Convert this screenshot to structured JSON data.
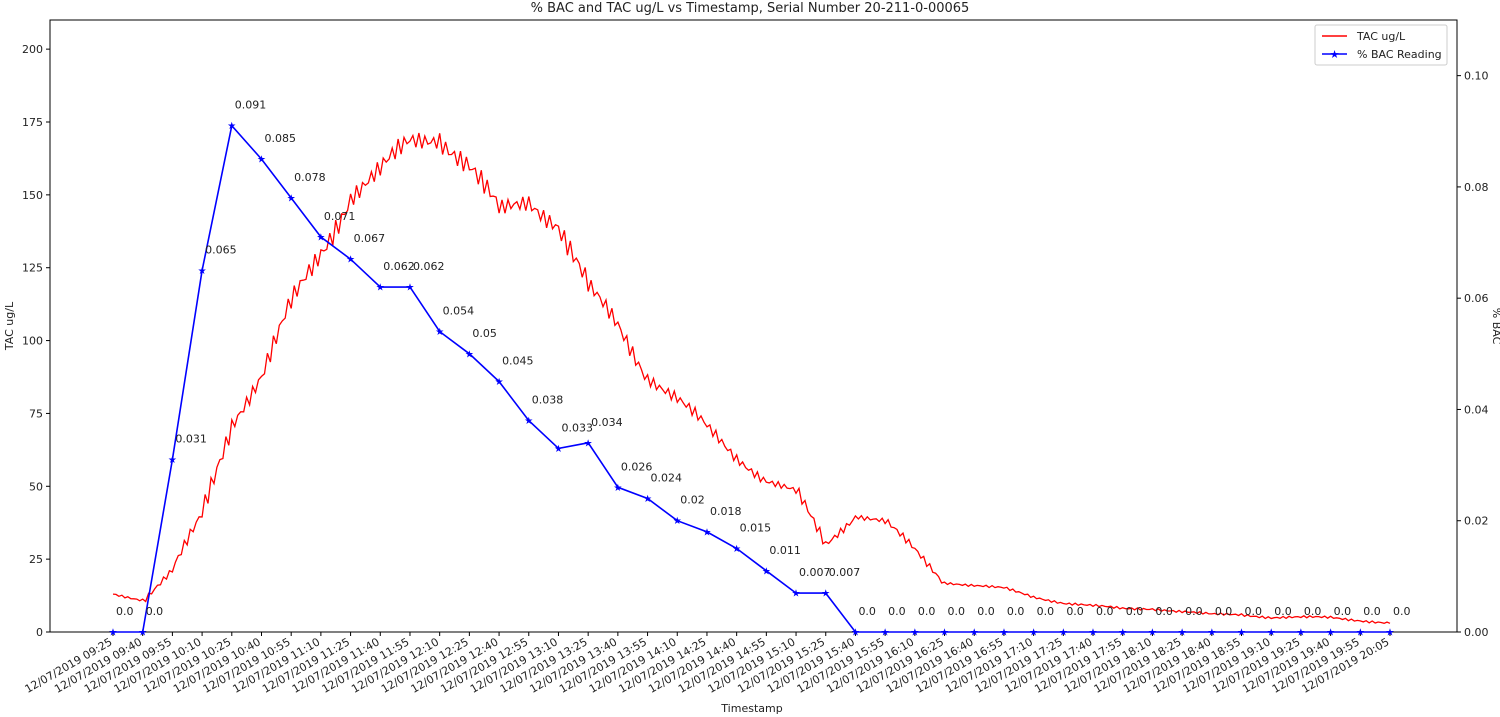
{
  "chart_data": {
    "type": "line",
    "title": "% BAC and TAC ug/L vs Timestamp, Serial Number 20-211-0-00065",
    "xlabel": "Timestamp",
    "ylabel_left": "TAC ug/L",
    "ylabel_right": "% BAC",
    "ylim_left": [
      0,
      210
    ],
    "ylim_right": [
      0,
      0.11
    ],
    "left_ticks": [
      "0",
      "25",
      "50",
      "75",
      "100",
      "125",
      "150",
      "175",
      "200"
    ],
    "right_ticks": [
      "0.00",
      "0.02",
      "0.04",
      "0.06",
      "0.08",
      "0.10"
    ],
    "grid": false,
    "legend_position": "top-right",
    "x": [
      "12/07/2019 09:25",
      "12/07/2019 09:40",
      "12/07/2019 09:55",
      "12/07/2019 10:10",
      "12/07/2019 10:25",
      "12/07/2019 10:40",
      "12/07/2019 10:55",
      "12/07/2019 11:10",
      "12/07/2019 11:25",
      "12/07/2019 11:40",
      "12/07/2019 11:55",
      "12/07/2019 12:10",
      "12/07/2019 12:25",
      "12/07/2019 12:40",
      "12/07/2019 12:55",
      "12/07/2019 13:10",
      "12/07/2019 13:25",
      "12/07/2019 13:40",
      "12/07/2019 13:55",
      "12/07/2019 14:10",
      "12/07/2019 14:25",
      "12/07/2019 14:40",
      "12/07/2019 14:55",
      "12/07/2019 15:10",
      "12/07/2019 15:25",
      "12/07/2019 15:40",
      "12/07/2019 15:55",
      "12/07/2019 16:10",
      "12/07/2019 16:25",
      "12/07/2019 16:40",
      "12/07/2019 16:55",
      "12/07/2019 17:10",
      "12/07/2019 17:25",
      "12/07/2019 17:40",
      "12/07/2019 17:55",
      "12/07/2019 18:10",
      "12/07/2019 18:25",
      "12/07/2019 18:40",
      "12/07/2019 18:55",
      "12/07/2019 19:10",
      "12/07/2019 19:25",
      "12/07/2019 19:40",
      "12/07/2019 19:55",
      "12/07/2019 20:05"
    ],
    "series": [
      {
        "name": "TAC ug/L",
        "axis": "left",
        "color": "#ff0000",
        "values": [
          13,
          11,
          21,
          40,
          72,
          88,
          112,
          130,
          150,
          158,
          168,
          170,
          160,
          144,
          148,
          140,
          118,
          105,
          88,
          80,
          70,
          60,
          52,
          48,
          30,
          40,
          38,
          28,
          17,
          16,
          15,
          12,
          10,
          9,
          8,
          8,
          7,
          6,
          6,
          5,
          5,
          5,
          4,
          3
        ]
      },
      {
        "name": "% BAC Reading",
        "axis": "right",
        "color": "#0000ff",
        "marker": "star",
        "values": [
          0.0,
          0.0,
          0.031,
          0.065,
          0.091,
          0.085,
          0.078,
          0.071,
          0.067,
          0.062,
          0.062,
          0.054,
          0.05,
          0.045,
          0.038,
          0.033,
          0.034,
          0.026,
          0.024,
          0.02,
          0.018,
          0.015,
          0.011,
          0.007,
          0.007,
          0.0,
          0.0,
          0.0,
          0.0,
          0.0,
          0.0,
          0.0,
          0.0,
          0.0,
          0.0,
          0.0,
          0.0,
          0.0,
          0.0,
          0.0,
          0.0,
          0.0,
          0.0,
          0.0
        ],
        "labels": [
          "0.0",
          "0.0",
          "0.031",
          "0.065",
          "0.091",
          "0.085",
          "0.078",
          "0.071",
          "0.067",
          "0.062",
          "0.062",
          "0.054",
          "0.05",
          "0.045",
          "0.038",
          "0.033",
          "0.034",
          "0.026",
          "0.024",
          "0.02",
          "0.018",
          "0.015",
          "0.011",
          "0.007",
          "0.007",
          "0.0",
          "0.0",
          "0.0",
          "0.0",
          "0.0",
          "0.0",
          "0.0",
          "0.0",
          "0.0",
          "0.0",
          "0.0",
          "0.0",
          "0.0",
          "0.0",
          "0.0",
          "0.0",
          "0.0",
          "0.0",
          "0.0"
        ]
      }
    ]
  }
}
